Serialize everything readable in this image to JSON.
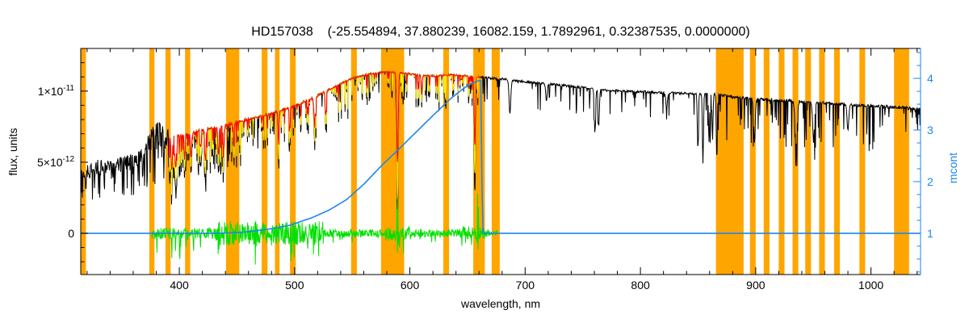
{
  "chart_data": {
    "type": "line",
    "title": "HD157038    (-25.554894, 37.880239, 16082.159, 1.7892961, 0.32387535, 0.0000000)",
    "band_color": "#FFA500",
    "x_axis": {
      "label": "wavelength, nm",
      "min": 314.5,
      "max": 1043,
      "major_ticks": [
        400,
        500,
        600,
        700,
        800,
        900,
        1000
      ],
      "minor_step": 20
    },
    "y_left": {
      "label": "flux, units",
      "units_scale": "1e-12",
      "min": -2.9,
      "max": 13.0,
      "minor_step": 1,
      "ticks": [
        {
          "v": 0,
          "label": "0"
        },
        {
          "v": 5,
          "label": "5×10^-12"
        },
        {
          "v": 10,
          "label": "1×10^-11"
        }
      ]
    },
    "y_right": {
      "label": "mcont",
      "color": "#1c86ee",
      "min": 0.2,
      "max": 4.58,
      "minor_step": 0.25,
      "ticks": [
        1,
        2,
        3,
        4
      ]
    },
    "masked_bands_nm": [
      [
        314.5,
        319
      ],
      [
        374,
        378.5
      ],
      [
        388,
        392.5
      ],
      [
        405,
        409.5
      ],
      [
        440.5,
        452
      ],
      [
        471.5,
        476.5
      ],
      [
        483,
        487
      ],
      [
        496,
        501
      ],
      [
        549,
        554
      ],
      [
        575,
        595
      ],
      [
        629,
        634
      ],
      [
        655,
        665
      ],
      [
        671,
        678
      ],
      [
        865.5,
        889.5
      ],
      [
        895,
        900
      ],
      [
        907,
        912
      ],
      [
        920,
        925
      ],
      [
        932,
        937
      ],
      [
        943,
        948
      ],
      [
        955,
        960
      ],
      [
        968,
        973
      ],
      [
        990,
        995
      ],
      [
        1020,
        1033
      ]
    ],
    "series": {
      "spectrum": {
        "color": "#000000",
        "continuum": [
          [
            314.5,
            4.0
          ],
          [
            320,
            4.3
          ],
          [
            330,
            4.7
          ],
          [
            340,
            4.6
          ],
          [
            350,
            4.9
          ],
          [
            360,
            5.1
          ],
          [
            368,
            5.6
          ],
          [
            374,
            6.9
          ],
          [
            380,
            7.4
          ],
          [
            386,
            7.2
          ],
          [
            392,
            6.8
          ],
          [
            400,
            6.9
          ],
          [
            410,
            7.0
          ],
          [
            420,
            7.3
          ],
          [
            430,
            7.4
          ],
          [
            445,
            7.7
          ],
          [
            460,
            8.0
          ],
          [
            475,
            8.3
          ],
          [
            490,
            8.7
          ],
          [
            505,
            9.1
          ],
          [
            520,
            9.7
          ],
          [
            535,
            10.3
          ],
          [
            550,
            10.9
          ],
          [
            565,
            11.2
          ],
          [
            578,
            11.35
          ],
          [
            590,
            11.3
          ],
          [
            605,
            11.15
          ],
          [
            620,
            11.05
          ],
          [
            635,
            11.15
          ],
          [
            650,
            11.05
          ],
          [
            665,
            10.95
          ],
          [
            680,
            10.85
          ],
          [
            700,
            10.65
          ],
          [
            720,
            10.5
          ],
          [
            745,
            10.3
          ],
          [
            770,
            10.05
          ],
          [
            800,
            9.95
          ],
          [
            830,
            9.85
          ],
          [
            860,
            9.8
          ],
          [
            880,
            9.6
          ],
          [
            900,
            9.45
          ],
          [
            930,
            9.3
          ],
          [
            960,
            9.15
          ],
          [
            990,
            9.0
          ],
          [
            1015,
            8.9
          ],
          [
            1043,
            8.75
          ]
        ],
        "noise_regions": [
          {
            "range": [
              314.5,
              368
            ],
            "amp": 0.5,
            "line_prob": 0.35,
            "line_depth": 0.5
          },
          {
            "range": [
              368,
              398
            ],
            "amp": 0.45,
            "line_prob": 0.6,
            "line_depth": 0.5
          },
          {
            "range": [
              398,
              460
            ],
            "amp": 0.15,
            "line_prob": 0.42,
            "line_depth": 0.45
          },
          {
            "range": [
              460,
              520
            ],
            "amp": 0.12,
            "line_prob": 0.32,
            "line_depth": 0.32
          },
          {
            "range": [
              520,
              575
            ],
            "amp": 0.1,
            "line_prob": 0.26,
            "line_depth": 0.26
          },
          {
            "range": [
              575,
              680
            ],
            "amp": 0.09,
            "line_prob": 0.22,
            "line_depth": 0.22
          },
          {
            "range": [
              680,
              858
            ],
            "amp": 0.08,
            "line_prob": 0.09,
            "line_depth": 0.2
          },
          {
            "range": [
              858,
              1005
            ],
            "amp": 0.1,
            "line_prob": 0.2,
            "line_depth": 0.35
          },
          {
            "range": [
              1005,
              1043
            ],
            "amp": 0.12,
            "line_prob": 0.12,
            "line_depth": 0.2
          }
        ],
        "lines": [
          [
            393.4,
            0.6,
            1.1
          ],
          [
            396.9,
            0.55,
            1.1
          ],
          [
            404.6,
            0.35,
            0.9
          ],
          [
            410.2,
            0.42,
            1.0
          ],
          [
            422.7,
            0.5,
            1.0
          ],
          [
            434.0,
            0.45,
            1.0
          ],
          [
            438.4,
            0.38,
            1.0
          ],
          [
            447.2,
            0.3,
            0.9
          ],
          [
            486.1,
            0.4,
            1.0
          ],
          [
            495.8,
            0.25,
            0.9
          ],
          [
            517.3,
            0.3,
            1.4
          ],
          [
            527.0,
            0.28,
            1.0
          ],
          [
            589.3,
            0.93,
            1.4
          ],
          [
            610.3,
            0.2,
            0.9
          ],
          [
            656.3,
            0.75,
            1.2
          ],
          [
            686.8,
            0.22,
            1.6
          ],
          [
            718.5,
            0.12,
            1.4
          ],
          [
            760.5,
            0.3,
            1.2
          ],
          [
            763.8,
            0.25,
            1.2
          ],
          [
            822.7,
            0.12,
            1.4
          ],
          [
            849.8,
            0.4,
            1.0
          ],
          [
            854.2,
            0.5,
            1.0
          ],
          [
            859.5,
            0.35,
            1.0
          ],
          [
            862.5,
            0.3,
            1.0
          ],
          [
            866.2,
            0.45,
            1.0
          ],
          [
            898.9,
            0.3,
            1.6
          ],
          [
            935.0,
            0.32,
            2.0
          ],
          [
            950.2,
            0.28,
            1.8
          ],
          [
            980.0,
            0.2,
            1.6
          ]
        ]
      },
      "fit": {
        "color": "#FF0000",
        "range": [
          391,
          661
        ]
      },
      "masked_fit": {
        "color": "#FFEE00",
        "range": [
          391,
          661
        ]
      },
      "residual": {
        "color": "#00E000",
        "range": [
          376,
          676
        ],
        "zero": 0,
        "noise_regions": [
          {
            "range": [
              376,
              432
            ],
            "amp": 0.4,
            "spike_prob": 0.07,
            "spike_amp": 1.8
          },
          {
            "range": [
              432,
              525
            ],
            "amp": 0.85,
            "spike_prob": 0.06,
            "spike_amp": 1.7
          },
          {
            "range": [
              525,
              578
            ],
            "amp": 0.3,
            "spike_prob": 0.02,
            "spike_amp": 0.8
          },
          {
            "range": [
              578,
              602
            ],
            "amp": 0.55,
            "spike_prob": 0.05,
            "spike_amp": 1.2
          },
          {
            "range": [
              602,
              646
            ],
            "amp": 0.3,
            "spike_prob": 0.03,
            "spike_amp": 0.9
          },
          {
            "range": [
              646,
              668
            ],
            "amp": 0.5,
            "spike_prob": 0.05,
            "spike_amp": 1.0
          },
          {
            "range": [
              668,
              676
            ],
            "amp": 0.2,
            "spike_prob": 0,
            "spike_amp": 0
          }
        ],
        "spikes": [
          [
            589.3,
            3.1,
            -1.6
          ],
          [
            659,
            3.4,
            -1.3
          ],
          [
            466,
            1.2,
            -2.3
          ],
          [
            497,
            0.9,
            -2.5
          ],
          [
            434,
            0.8,
            -1.9
          ]
        ]
      },
      "mcont": {
        "color": "#1c86ee",
        "points": [
          [
            314.5,
            1
          ],
          [
            435,
            1
          ],
          [
            455,
            1.02
          ],
          [
            475,
            1.07
          ],
          [
            495,
            1.15
          ],
          [
            515,
            1.3
          ],
          [
            530,
            1.45
          ],
          [
            545,
            1.65
          ],
          [
            560,
            1.95
          ],
          [
            575,
            2.3
          ],
          [
            590,
            2.62
          ],
          [
            605,
            2.95
          ],
          [
            620,
            3.28
          ],
          [
            635,
            3.6
          ],
          [
            645,
            3.78
          ],
          [
            653,
            3.9
          ],
          [
            659,
            3.95
          ],
          [
            661.5,
            3.96
          ],
          [
            663,
            1.0
          ],
          [
            1043,
            1.0
          ]
        ]
      }
    }
  }
}
